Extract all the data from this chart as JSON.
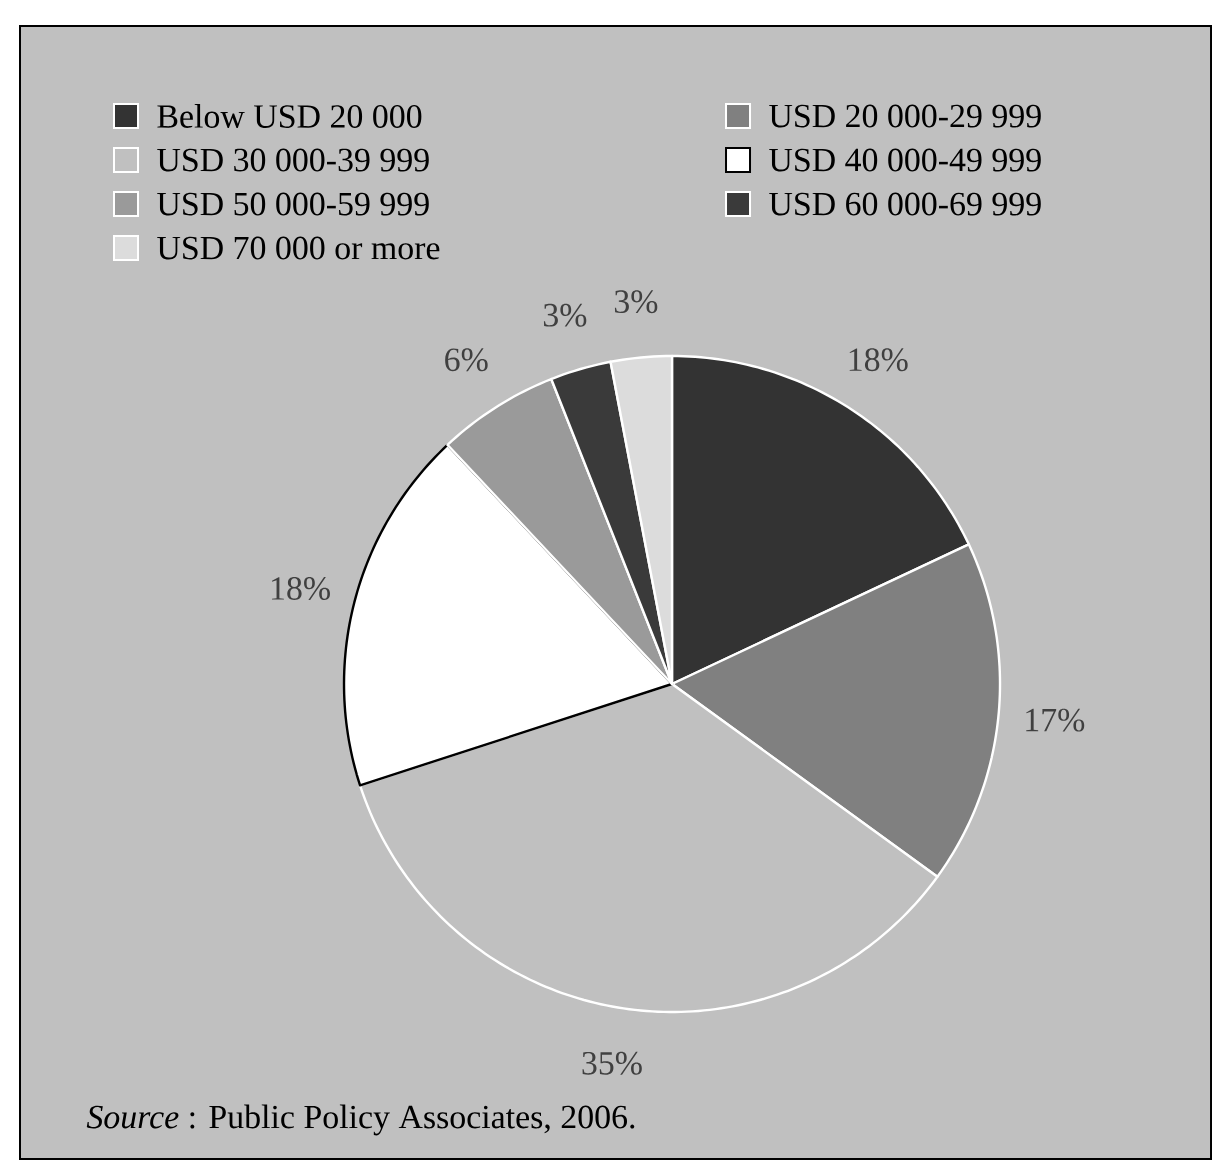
{
  "chart_data": {
    "type": "pie",
    "categories": [
      "Below USD 20 000",
      "USD 20 000-29 999",
      "USD 30 000-39 999",
      "USD 40 000-49 999",
      "USD 50 000-59 999",
      "USD 60 000-69 999",
      "USD 70 000 or more"
    ],
    "values": [
      18,
      17,
      35,
      18,
      6,
      3,
      3
    ],
    "value_labels": [
      "18%",
      "17%",
      "35%",
      "18%",
      "6%",
      "3%",
      "3%"
    ],
    "colors": [
      "#333333",
      "#808080",
      "#c0c0c0",
      "#ffffff",
      "#9a9a9a",
      "#3a3a3a",
      "#dcdcdc"
    ],
    "legend": "top",
    "annotations": [
      "*Source* : Public Policy Associates, 2006."
    ]
  }
}
